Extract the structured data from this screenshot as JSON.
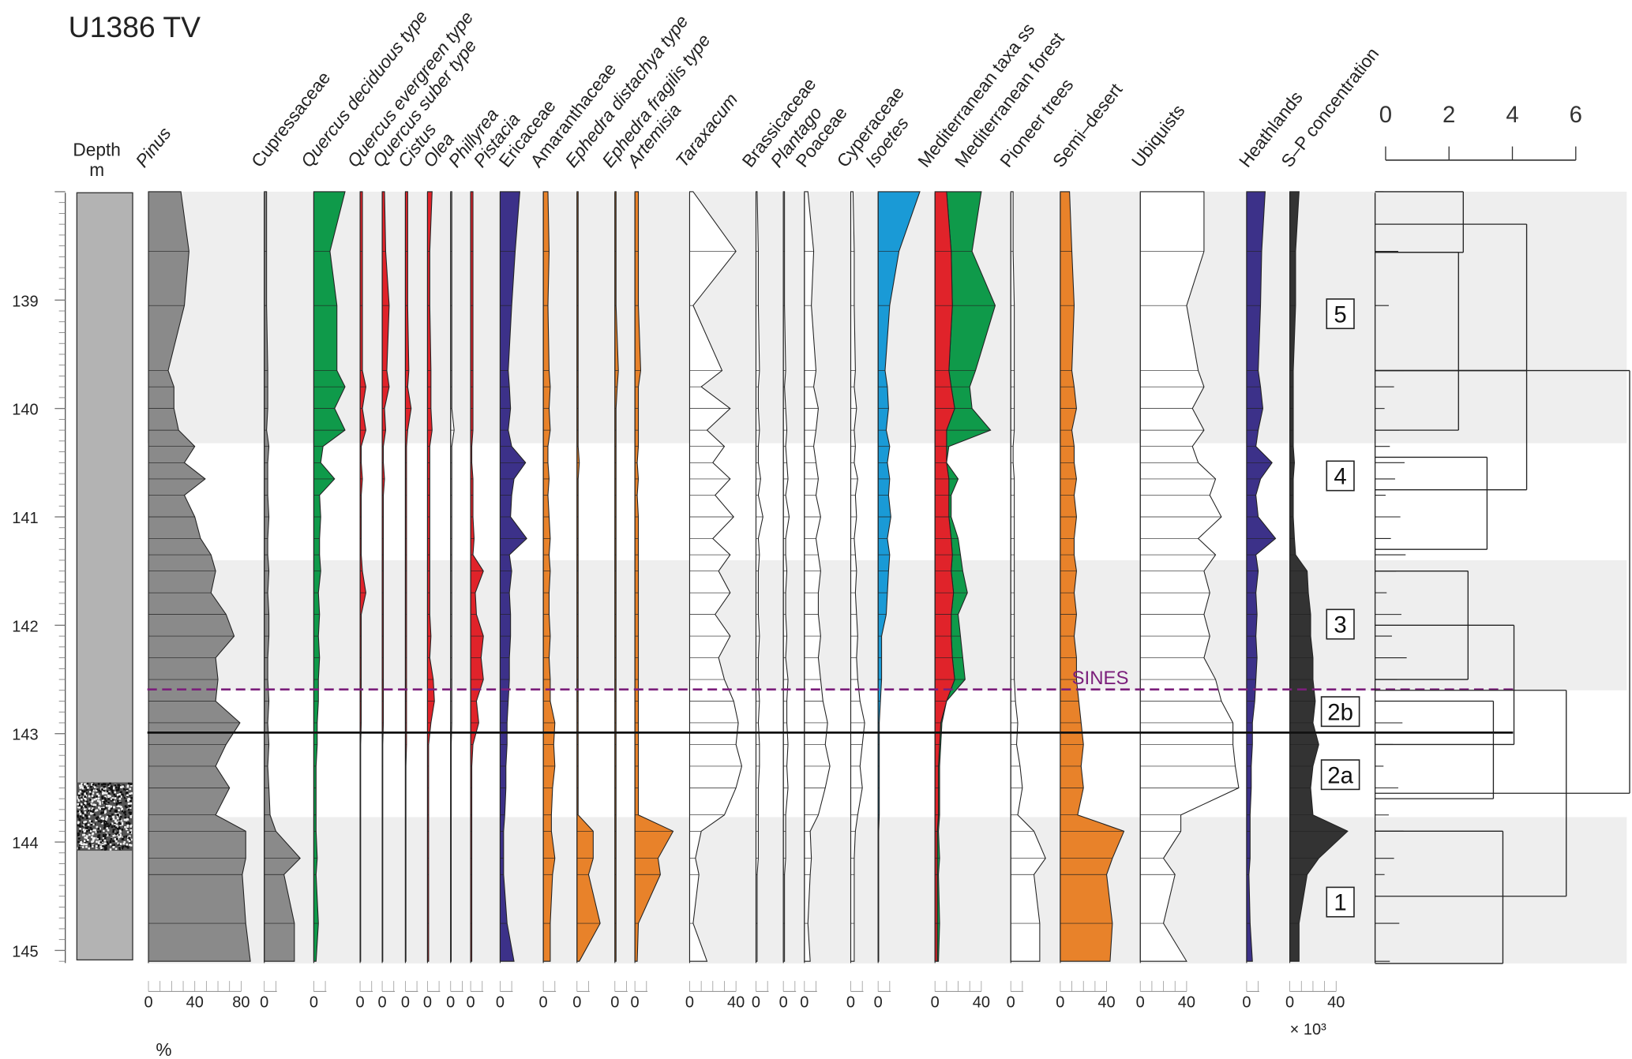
{
  "chart_data": {
    "type": "area",
    "title": "U1386 TV",
    "ylabel": "Depth",
    "yunit": "m",
    "ylim": [
      138.0,
      145.1
    ],
    "depth_ticks": [
      "139",
      "140",
      "141",
      "142",
      "143",
      "144",
      "145"
    ],
    "xunit": "%",
    "conc_unit": "× 10³",
    "depths": [
      138.0,
      138.55,
      139.05,
      139.65,
      139.8,
      140.0,
      140.2,
      140.35,
      140.5,
      140.65,
      140.8,
      141.0,
      141.2,
      141.35,
      141.5,
      141.7,
      141.9,
      142.1,
      142.3,
      142.5,
      142.7,
      142.9,
      143.1,
      143.3,
      143.5,
      143.75,
      143.9,
      144.15,
      144.3,
      144.75,
      145.1
    ],
    "colors": {
      "grey": "#8a8a8a",
      "green": "#0f9a4a",
      "red": "#e0232a",
      "navy": "#3c3189",
      "orange": "#e8822a",
      "blue": "#1a9ad6",
      "white": "#ffffff",
      "dark": "#333333",
      "band": "#eeeeee",
      "sines": "#7b1f7b"
    },
    "series": [
      {
        "name": "Pinus",
        "italic": true,
        "color": "#8a8a8a",
        "ticks": [
          "0",
          "40",
          "80"
        ],
        "values": [
          28,
          35,
          31,
          17,
          22,
          22,
          26,
          40,
          31,
          49,
          31,
          40,
          45,
          54,
          58,
          54,
          67,
          74,
          58,
          60,
          58,
          79,
          67,
          58,
          70,
          58,
          84,
          84,
          81,
          84,
          88
        ]
      },
      {
        "name": "Cupressaceae",
        "italic": false,
        "color": "#8a8a8a",
        "ticks": [
          "0"
        ],
        "values": [
          2,
          2,
          2,
          3,
          3,
          3,
          2,
          4,
          3,
          3,
          3,
          4,
          3,
          3,
          4,
          3,
          4,
          4,
          3,
          3,
          4,
          3,
          4,
          3,
          4,
          5,
          10,
          31,
          17,
          26,
          26
        ]
      },
      {
        "name": "Quercus deciduous type",
        "italic": true,
        "color": "#0f9a4a",
        "ticks": [
          "0"
        ],
        "values": [
          27,
          14,
          20,
          20,
          27,
          18,
          27,
          8,
          6,
          18,
          5,
          6,
          5,
          5,
          6,
          4,
          5,
          4,
          5,
          4,
          4,
          3,
          3,
          2,
          2,
          2,
          2,
          3,
          2,
          4,
          2
        ]
      },
      {
        "name": "Quercus evergreen type",
        "italic": true,
        "color": "#e0232a",
        "ticks": [
          "0"
        ],
        "values": [
          2,
          2,
          2,
          2,
          5,
          2,
          5,
          1,
          1,
          2,
          1,
          1,
          1,
          1,
          2,
          5,
          1,
          1,
          1,
          1,
          1,
          1,
          0.5,
          0.5,
          0.5,
          0.5,
          0.5,
          0.5,
          0.5,
          0.5,
          0.5
        ]
      },
      {
        "name": "Quercus suber type",
        "italic": true,
        "color": "#e0232a",
        "ticks": [
          "0"
        ],
        "values": [
          2,
          3,
          6,
          4,
          6,
          2,
          3,
          1,
          1,
          2,
          1,
          1,
          1,
          1,
          1,
          1,
          1,
          1,
          1,
          1,
          1,
          1,
          0.5,
          0.5,
          0.5,
          0.5,
          0.5,
          0.5,
          0.5,
          0.5,
          0.5
        ]
      },
      {
        "name": "Cistus",
        "italic": true,
        "color": "#e0232a",
        "ticks": [
          "0"
        ],
        "values": [
          2,
          2,
          2,
          3,
          2,
          5,
          2,
          1,
          1,
          1,
          1,
          1,
          1,
          1,
          1,
          1,
          1,
          1,
          1,
          1,
          1,
          1,
          1,
          0.5,
          0.5,
          0.5,
          0.5,
          0.5,
          0.5,
          0.5,
          0.5
        ]
      },
      {
        "name": "Olea",
        "italic": true,
        "color": "#e0232a",
        "ticks": [
          "0"
        ],
        "values": [
          4,
          2,
          2,
          3,
          3,
          3,
          4,
          2,
          2,
          2,
          2,
          2,
          2,
          2,
          2,
          2,
          2,
          3,
          2,
          5,
          6,
          3,
          1,
          1,
          1,
          1,
          1,
          1,
          1,
          1,
          1
        ]
      },
      {
        "name": "Phillyrea",
        "italic": true,
        "color": "#ffffff",
        "ticks": [
          "0"
        ],
        "values": [
          1,
          1,
          1,
          1,
          1,
          1,
          3,
          1,
          1,
          1,
          1,
          1,
          1,
          1,
          1,
          1,
          1,
          1,
          1,
          1,
          1,
          1,
          0.5,
          0.5,
          0.5,
          0.5,
          0.5,
          0.5,
          0.5,
          0.5,
          0.5
        ]
      },
      {
        "name": "Pistacia",
        "italic": true,
        "color": "#e0232a",
        "ticks": [
          "0"
        ],
        "values": [
          2,
          2,
          2,
          2,
          2,
          2,
          2,
          1,
          1,
          2,
          2,
          2,
          3,
          2,
          11,
          4,
          5,
          11,
          9,
          11,
          5,
          7,
          2,
          1,
          1,
          1,
          1,
          1,
          1,
          1,
          1
        ]
      },
      {
        "name": "Ericaceae",
        "italic": false,
        "color": "#3c3189",
        "ticks": [
          "0"
        ],
        "values": [
          17,
          13,
          10,
          7,
          8,
          9,
          7,
          10,
          22,
          12,
          10,
          9,
          23,
          8,
          10,
          8,
          9,
          9,
          8,
          8,
          7,
          6,
          6,
          5,
          5,
          4,
          3,
          3,
          3,
          6,
          12
        ]
      },
      {
        "name": "Amaranthaceae",
        "italic": false,
        "color": "#e8822a",
        "ticks": [
          "0"
        ],
        "values": [
          4,
          5,
          4,
          5,
          6,
          5,
          6,
          4,
          4,
          5,
          4,
          5,
          6,
          5,
          6,
          5,
          5,
          6,
          5,
          6,
          6,
          10,
          9,
          10,
          8,
          7,
          7,
          10,
          8,
          6,
          6
        ]
      },
      {
        "name": "Ephedra distachya type",
        "italic": true,
        "color": "#e8822a",
        "ticks": [
          "0"
        ],
        "values": [
          1,
          1,
          1,
          1,
          1,
          1,
          1,
          1,
          2,
          1,
          1,
          1,
          1,
          1,
          1,
          1,
          1,
          1,
          1,
          1,
          1,
          1,
          1,
          1,
          1,
          1,
          14,
          14,
          10,
          20,
          2
        ]
      },
      {
        "name": "Ephedra fragilis type",
        "italic": true,
        "color": "#e8822a",
        "ticks": [
          "0"
        ],
        "values": [
          1,
          1,
          1,
          3,
          2,
          1,
          1,
          1,
          1,
          1,
          1,
          1,
          1,
          1,
          1,
          1,
          1,
          1,
          1,
          1,
          1,
          1,
          1,
          1,
          1,
          1,
          1,
          1,
          1,
          1,
          1
        ]
      },
      {
        "name": "Artemisia",
        "italic": true,
        "color": "#e8822a",
        "ticks": [
          "0"
        ],
        "values": [
          3,
          3,
          3,
          5,
          3,
          3,
          3,
          3,
          2,
          3,
          2,
          3,
          3,
          3,
          3,
          3,
          3,
          3,
          3,
          3,
          3,
          3,
          3,
          3,
          3,
          3,
          33,
          20,
          22,
          3,
          2
        ]
      },
      {
        "name": "Taraxacum",
        "italic": true,
        "color": "#ffffff",
        "ticks": [
          "0",
          "40"
        ],
        "values": [
          3,
          40,
          3,
          28,
          10,
          35,
          15,
          30,
          20,
          35,
          22,
          38,
          20,
          35,
          25,
          35,
          22,
          35,
          25,
          30,
          38,
          42,
          40,
          45,
          40,
          30,
          10,
          5,
          8,
          3,
          15
        ]
      },
      {
        "name": "Brassicaceae",
        "italic": false,
        "color": "#ffffff",
        "ticks": [
          "0"
        ],
        "values": [
          1,
          2,
          2,
          3,
          2,
          2,
          3,
          2,
          2,
          4,
          2,
          6,
          2,
          3,
          2,
          2,
          2,
          3,
          2,
          2,
          3,
          2,
          3,
          3,
          2,
          2,
          2,
          2,
          1,
          1,
          1
        ]
      },
      {
        "name": "Plantago",
        "italic": true,
        "color": "#ffffff",
        "ticks": [
          "0"
        ],
        "values": [
          1,
          1,
          1,
          2,
          1,
          2,
          3,
          2,
          3,
          4,
          2,
          5,
          2,
          2,
          3,
          2,
          2,
          3,
          2,
          4,
          3,
          3,
          4,
          3,
          4,
          2,
          2,
          2,
          1,
          1,
          1
        ]
      },
      {
        "name": "Poaceae",
        "italic": false,
        "color": "#ffffff",
        "ticks": [
          "0"
        ],
        "values": [
          3,
          8,
          6,
          10,
          8,
          12,
          10,
          8,
          10,
          12,
          10,
          14,
          10,
          12,
          14,
          12,
          12,
          14,
          12,
          14,
          16,
          20,
          18,
          22,
          18,
          12,
          5,
          6,
          5,
          3,
          5
        ]
      },
      {
        "name": "Cyperaceae",
        "italic": false,
        "color": "#ffffff",
        "ticks": [
          "0"
        ],
        "values": [
          2,
          3,
          3,
          4,
          3,
          5,
          3,
          4,
          3,
          6,
          4,
          5,
          3,
          4,
          5,
          4,
          5,
          6,
          5,
          6,
          8,
          12,
          10,
          8,
          10,
          6,
          4,
          3,
          3,
          3,
          3
        ]
      },
      {
        "name": "Isoetes",
        "italic": true,
        "color": "#1a9ad6",
        "ticks": [
          "0"
        ],
        "values": [
          36,
          18,
          10,
          6,
          8,
          9,
          7,
          10,
          8,
          10,
          9,
          11,
          8,
          10,
          9,
          8,
          7,
          3,
          3,
          3,
          2,
          1,
          1,
          1,
          1,
          1,
          0.5,
          0.5,
          0.5,
          0.5,
          0.5
        ]
      },
      {
        "name": "Mediterranean taxa ss",
        "italic": false,
        "color": "#e0232a",
        "ticks": [
          "0",
          "40"
        ],
        "stack_name": "Mediterranean forest",
        "stack_color": "#0f9a4a",
        "stack_values": [
          40,
          32,
          52,
          35,
          30,
          32,
          48,
          12,
          10,
          20,
          14,
          14,
          20,
          22,
          24,
          28,
          20,
          22,
          24,
          26,
          10,
          6,
          5,
          4,
          4,
          4,
          3,
          4,
          3,
          4,
          3
        ],
        "values": [
          10,
          14,
          15,
          12,
          14,
          17,
          10,
          10,
          10,
          12,
          12,
          12,
          14,
          15,
          14,
          16,
          14,
          14,
          15,
          17,
          10,
          5,
          4,
          3,
          3,
          3,
          2,
          2,
          2,
          2,
          2
        ]
      },
      {
        "name": "Pioneer trees",
        "italic": false,
        "color": "#ffffff",
        "ticks": [
          "0"
        ],
        "values": [
          2,
          2,
          3,
          3,
          3,
          3,
          3,
          2,
          2,
          3,
          3,
          3,
          3,
          3,
          3,
          3,
          3,
          3,
          3,
          3,
          4,
          6,
          5,
          8,
          10,
          6,
          20,
          30,
          20,
          25,
          25
        ]
      },
      {
        "name": "Semi–desert",
        "italic": false,
        "color": "#e8822a",
        "ticks": [
          "0",
          "40"
        ],
        "values": [
          8,
          10,
          12,
          10,
          12,
          14,
          10,
          12,
          12,
          14,
          12,
          14,
          12,
          12,
          14,
          12,
          14,
          12,
          14,
          14,
          16,
          18,
          20,
          18,
          20,
          15,
          55,
          45,
          40,
          45,
          43
        ]
      },
      {
        "name": "Ubiquists",
        "italic": false,
        "color": "#ffffff",
        "ticks": [
          "0",
          "40"
        ],
        "values": [
          55,
          55,
          40,
          50,
          55,
          45,
          55,
          45,
          50,
          65,
          60,
          70,
          50,
          65,
          55,
          60,
          55,
          60,
          55,
          65,
          70,
          80,
          80,
          82,
          85,
          35,
          35,
          20,
          30,
          20,
          40
        ]
      },
      {
        "name": "Heathlands",
        "italic": false,
        "color": "#3c3189",
        "ticks": [
          "0"
        ],
        "values": [
          16,
          13,
          12,
          10,
          12,
          14,
          10,
          8,
          22,
          12,
          8,
          10,
          25,
          8,
          10,
          8,
          9,
          8,
          9,
          8,
          7,
          5,
          5,
          4,
          4,
          3,
          3,
          3,
          2,
          3,
          5
        ]
      },
      {
        "name": "S–P concentration",
        "italic": false,
        "color": "#333333",
        "ticks": [
          "0",
          "40"
        ],
        "values": [
          8,
          5,
          5,
          3,
          3,
          3,
          3,
          3,
          4,
          3,
          3,
          3,
          4,
          5,
          15,
          16,
          18,
          18,
          20,
          20,
          22,
          20,
          25,
          20,
          18,
          20,
          50,
          25,
          15,
          8,
          8
        ]
      }
    ],
    "zones": [
      {
        "label": "5",
        "top": 138.0,
        "bottom": 140.32,
        "shaded": true
      },
      {
        "label": "4",
        "top": 140.32,
        "bottom": 141.4,
        "shaded": false
      },
      {
        "label": "3",
        "top": 141.4,
        "bottom": 142.6,
        "shaded": true
      },
      {
        "label": "2b",
        "top": 142.6,
        "bottom": 143.0,
        "shaded": false
      },
      {
        "label": "2a",
        "top": 143.0,
        "bottom": 143.77,
        "shaded": false
      },
      {
        "label": "1",
        "top": 143.77,
        "bottom": 145.12,
        "shaded": true
      }
    ],
    "markers": [
      {
        "label": "SINES",
        "depth": 142.6,
        "style": "dashed"
      },
      {
        "label": "",
        "depth": 143.0,
        "style": "solid"
      }
    ],
    "lithology": {
      "sand_top": 143.45,
      "sand_bottom": 144.08
    },
    "dendrogram": {
      "scale_ticks": [
        "0",
        "2",
        "4",
        "6"
      ],
      "scale_max": 6,
      "clusters": [
        {
          "top": 138.0,
          "bottom": 138.56,
          "distance": 2.45
        },
        {
          "top": 138.56,
          "bottom": 140.2,
          "distance": 2.3
        },
        {
          "top": 138.3,
          "bottom": 139.65,
          "distance": 4.45
        },
        {
          "top": 140.45,
          "bottom": 141.3,
          "distance": 3.2
        },
        {
          "top": 139.65,
          "bottom": 140.75,
          "distance": 4.45
        },
        {
          "top": 141.5,
          "bottom": 142.5,
          "distance": 2.6
        },
        {
          "top": 142.7,
          "bottom": 143.6,
          "distance": 3.4
        },
        {
          "top": 142.0,
          "bottom": 143.1,
          "distance": 4.05
        },
        {
          "top": 143.9,
          "bottom": 145.12,
          "distance": 3.7
        },
        {
          "top": 142.6,
          "bottom": 144.5,
          "distance": 5.7
        },
        {
          "top": 139.65,
          "bottom": 143.55,
          "distance": 7.7
        }
      ]
    }
  }
}
